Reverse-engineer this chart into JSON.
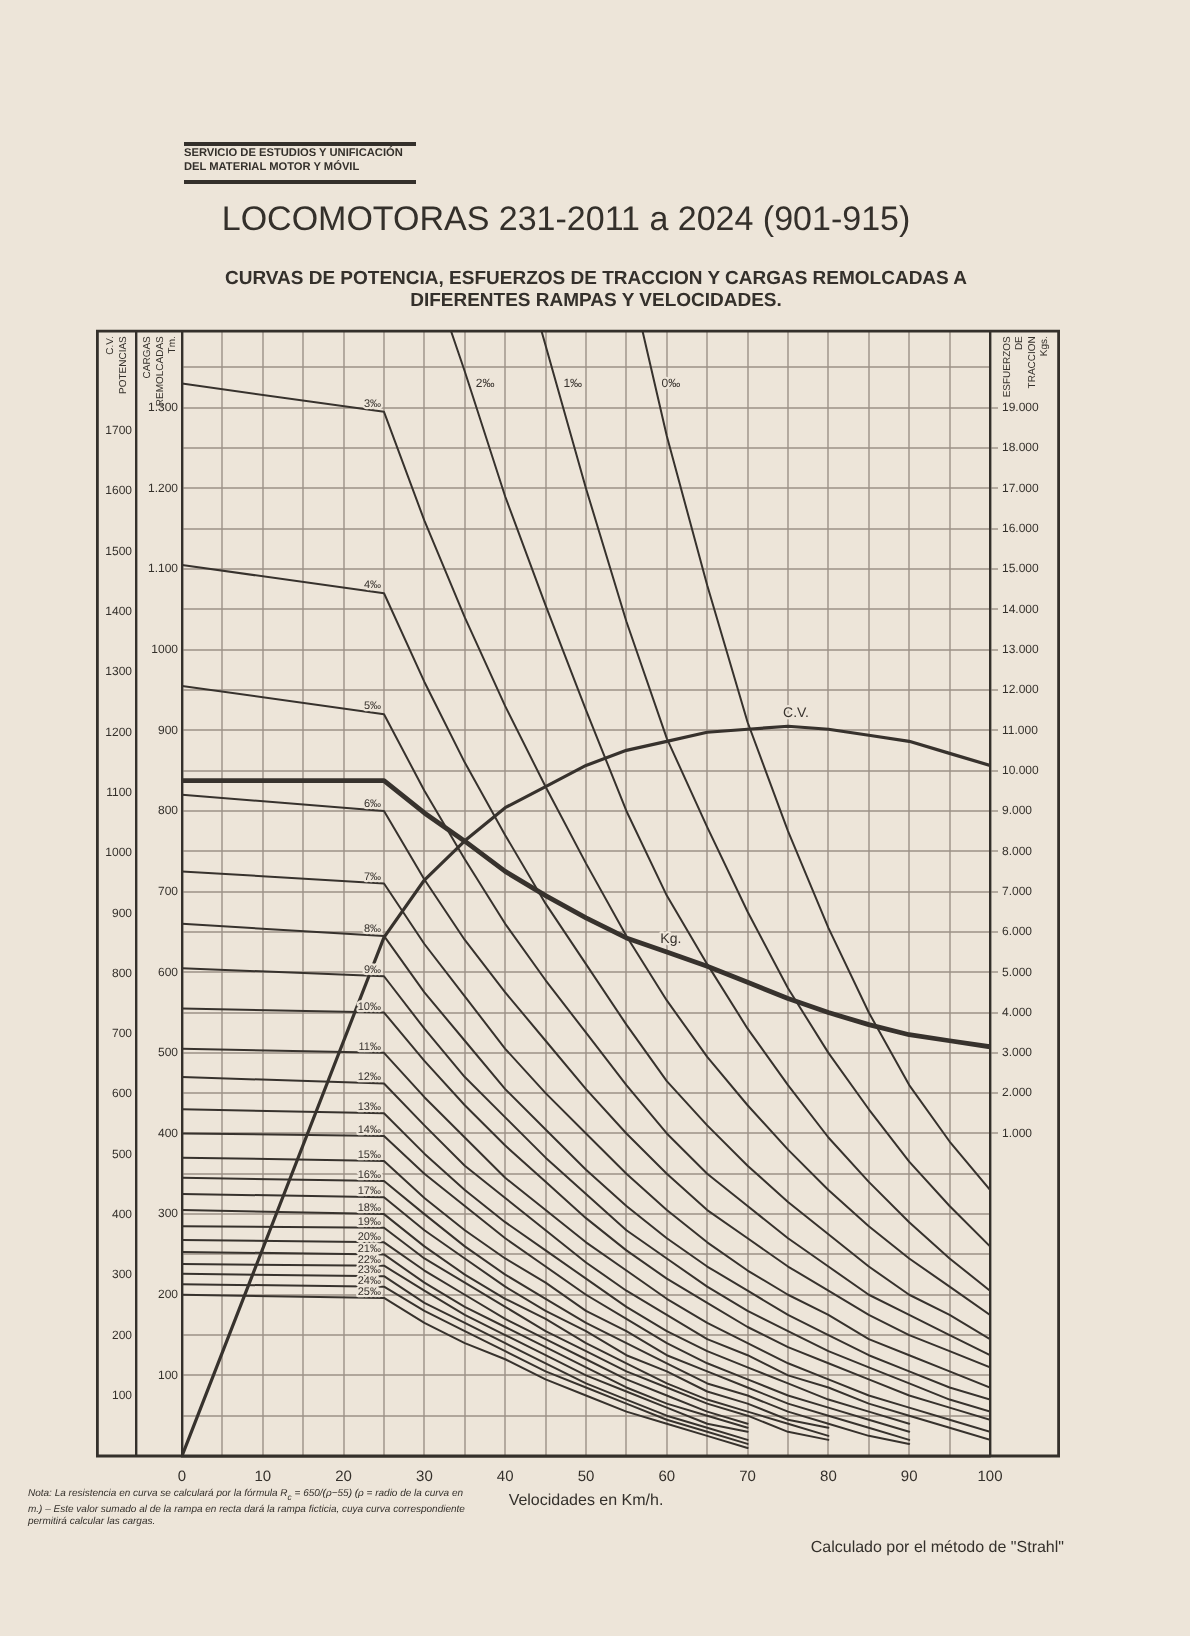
{
  "chart_data": {
    "type": "line",
    "title": "LOCOMOTORAS 231-2011 a 2024 (901-915)",
    "subtitle": "CURVAS DE POTENCIA, ESFUERZOS DE TRACCION Y CARGAS REMOLCADAS A DIFERENTES RAMPAS Y VELOCIDADES.",
    "xlabel": "Velocidades en Km/h.",
    "ylabel": "CARGAS REMOLCADAS Tm.",
    "y2label": "ESFUERZOS DE TRACCION Kgs.",
    "y3label": "C.V. POTENCIAS",
    "xlim": [
      0,
      100
    ],
    "xticks": [
      0,
      {
        "value": 5,
        "label": null
      },
      10,
      {
        "value": 15,
        "label": null
      },
      20,
      {
        "value": 25,
        "label": null
      },
      30,
      {
        "value": 35,
        "label": null
      },
      40,
      {
        "value": 45,
        "label": null
      },
      50,
      {
        "value": 55,
        "label": null
      },
      60,
      {
        "value": 65,
        "label": null
      },
      70,
      {
        "value": 75,
        "label": null
      },
      80,
      {
        "value": 85,
        "label": null
      },
      90,
      {
        "value": 95,
        "label": null
      },
      100
    ],
    "ylim": [
      0,
      1395
    ],
    "yticks": [
      {
        "value": 50,
        "label": null
      },
      100,
      {
        "value": 150,
        "label": null
      },
      200,
      {
        "value": 250,
        "label": null
      },
      300,
      {
        "value": 350,
        "label": null
      },
      400,
      {
        "value": 450,
        "label": null
      },
      500,
      {
        "value": 550,
        "label": null
      },
      600,
      {
        "value": 650,
        "label": null
      },
      700,
      {
        "value": 750,
        "label": null
      },
      800,
      {
        "value": 850,
        "label": null
      },
      900,
      {
        "value": 950,
        "label": null
      },
      1000,
      {
        "value": 1050,
        "label": null
      },
      {
        "value": 1100,
        "label": "1.100"
      },
      {
        "value": 1150,
        "label": null
      },
      {
        "value": 1200,
        "label": "1.200"
      },
      {
        "value": 1250,
        "label": null
      },
      {
        "value": 1300,
        "label": "1.300"
      },
      {
        "value": 1350,
        "label": null
      }
    ],
    "y2lim": [
      -7000,
      20900
    ],
    "y2ticks": [
      {
        "value": 1000,
        "label": "1.000"
      },
      {
        "value": 2000,
        "label": "2.000"
      },
      {
        "value": 3000,
        "label": "3.000"
      },
      {
        "value": 4000,
        "label": "4.000"
      },
      {
        "value": 5000,
        "label": "5.000"
      },
      {
        "value": 6000,
        "label": "6.000"
      },
      {
        "value": 7000,
        "label": "7.000"
      },
      {
        "value": 8000,
        "label": "8.000"
      },
      {
        "value": 9000,
        "label": "9.000"
      },
      {
        "value": 10000,
        "label": "10.000"
      },
      {
        "value": 11000,
        "label": "11.000"
      },
      {
        "value": 12000,
        "label": "12.000"
      },
      {
        "value": 13000,
        "label": "13.000"
      },
      {
        "value": 14000,
        "label": "14.000"
      },
      {
        "value": 15000,
        "label": "15.000"
      },
      {
        "value": 16000,
        "label": "16.000"
      },
      {
        "value": 17000,
        "label": "17.000"
      },
      {
        "value": 18000,
        "label": "18.000"
      },
      {
        "value": 19000,
        "label": "19.000"
      }
    ],
    "y3lim": [
      0,
      1865
    ],
    "y3ticks": [
      100,
      200,
      300,
      400,
      500,
      600,
      700,
      800,
      900,
      1000,
      1100,
      1200,
      1300,
      1400,
      1500,
      1600,
      1700
    ],
    "grid": true,
    "series": [
      {
        "name": "0‰",
        "color": "#37322d",
        "x": [
          57,
          60,
          65,
          70,
          75,
          80,
          85,
          90,
          95,
          100
        ],
        "values": [
          1395,
          1265,
          1080,
          910,
          775,
          655,
          550,
          460,
          390,
          330
        ]
      },
      {
        "name": "1‰",
        "color": "#37322d",
        "x": [
          44.5,
          50,
          55,
          60,
          65,
          70,
          75,
          80,
          85,
          90,
          95,
          100
        ],
        "values": [
          1395,
          1200,
          1035,
          890,
          780,
          675,
          580,
          500,
          430,
          365,
          310,
          260
        ]
      },
      {
        "name": "2‰",
        "color": "#37322d",
        "x": [
          33.3,
          35,
          40,
          45,
          50,
          55,
          60,
          65,
          70,
          75,
          80,
          85,
          90,
          95,
          100
        ],
        "values": [
          1395,
          1345,
          1190,
          1055,
          925,
          800,
          695,
          610,
          530,
          460,
          395,
          340,
          290,
          245,
          205
        ]
      },
      {
        "name": "3‰",
        "color": "#37322d",
        "x": [
          0,
          25,
          30,
          35,
          40,
          45,
          50,
          55,
          60,
          65,
          70,
          75,
          80,
          85,
          90,
          95,
          100
        ],
        "values": [
          1330,
          1295,
          1160,
          1040,
          930,
          830,
          735,
          645,
          565,
          495,
          435,
          380,
          330,
          285,
          245,
          210,
          175
        ]
      },
      {
        "name": "4‰",
        "color": "#37322d",
        "x": [
          0,
          25,
          30,
          35,
          40,
          45,
          50,
          55,
          60,
          65,
          70,
          75,
          80,
          85,
          90,
          95,
          100
        ],
        "values": [
          1105,
          1070,
          960,
          860,
          770,
          685,
          610,
          535,
          465,
          410,
          360,
          315,
          275,
          235,
          200,
          175,
          145
        ]
      },
      {
        "name": "5‰",
        "color": "#37322d",
        "x": [
          0,
          25,
          30,
          35,
          40,
          45,
          50,
          55,
          60,
          65,
          70,
          75,
          80,
          85,
          90,
          95,
          100
        ],
        "values": [
          955,
          920,
          825,
          740,
          660,
          590,
          525,
          460,
          400,
          350,
          310,
          270,
          235,
          200,
          175,
          150,
          125
        ]
      },
      {
        "name": "6‰",
        "color": "#37322d",
        "x": [
          0,
          25,
          30,
          35,
          40,
          45,
          50,
          55,
          60,
          65,
          70,
          75,
          80,
          85,
          90,
          95,
          100
        ],
        "values": [
          820,
          800,
          715,
          640,
          575,
          515,
          455,
          400,
          350,
          305,
          270,
          235,
          205,
          175,
          150,
          130,
          110
        ]
      },
      {
        "name": "7‰",
        "color": "#37322d",
        "x": [
          0,
          25,
          30,
          35,
          40,
          45,
          50,
          55,
          60,
          65,
          70,
          75,
          80,
          85,
          90,
          95,
          100
        ],
        "values": [
          725,
          710,
          635,
          570,
          505,
          450,
          400,
          350,
          305,
          265,
          230,
          200,
          175,
          145,
          125,
          105,
          85
        ]
      },
      {
        "name": "8‰",
        "color": "#37322d",
        "x": [
          0,
          25,
          30,
          35,
          40,
          45,
          50,
          55,
          60,
          65,
          70,
          75,
          80,
          85,
          90,
          95,
          100
        ],
        "values": [
          660,
          645,
          575,
          515,
          455,
          405,
          355,
          310,
          270,
          235,
          205,
          175,
          150,
          125,
          105,
          85,
          70
        ]
      },
      {
        "name": "9‰",
        "color": "#37322d",
        "x": [
          0,
          25,
          30,
          35,
          40,
          45,
          50,
          55,
          60,
          65,
          70,
          75,
          80,
          85,
          90,
          95,
          100
        ],
        "values": [
          605,
          595,
          530,
          470,
          420,
          370,
          325,
          280,
          245,
          210,
          180,
          155,
          130,
          110,
          90,
          70,
          55
        ]
      },
      {
        "name": "10‰",
        "color": "#37322d",
        "x": [
          0,
          25,
          30,
          35,
          40,
          45,
          50,
          55,
          60,
          65,
          70,
          75,
          80,
          85,
          90,
          95,
          100
        ],
        "values": [
          555,
          550,
          490,
          435,
          385,
          340,
          295,
          255,
          220,
          190,
          160,
          135,
          115,
          95,
          75,
          60,
          45
        ]
      },
      {
        "name": "11‰",
        "color": "#37322d",
        "x": [
          0,
          25,
          30,
          35,
          40,
          45,
          50,
          55,
          60,
          65,
          70,
          75,
          80,
          85,
          90,
          95,
          100
        ],
        "values": [
          505,
          500,
          445,
          395,
          345,
          305,
          265,
          230,
          195,
          165,
          140,
          115,
          95,
          75,
          60,
          45,
          30
        ]
      },
      {
        "name": "12‰",
        "color": "#37322d",
        "x": [
          0,
          25,
          30,
          35,
          40,
          45,
          50,
          55,
          60,
          65,
          70,
          75,
          80,
          85,
          90,
          95,
          100
        ],
        "values": [
          470,
          462,
          410,
          360,
          320,
          280,
          240,
          205,
          175,
          145,
          125,
          100,
          85,
          65,
          50,
          35,
          20
        ]
      },
      {
        "name": "13‰",
        "color": "#37322d",
        "x": [
          0,
          25,
          30,
          35,
          40,
          45,
          50,
          55,
          60,
          65,
          70,
          75,
          80,
          85,
          90
        ],
        "values": [
          430,
          425,
          375,
          330,
          290,
          255,
          220,
          185,
          155,
          130,
          110,
          90,
          70,
          55,
          40
        ]
      },
      {
        "name": "14‰",
        "color": "#37322d",
        "x": [
          0,
          25,
          30,
          35,
          40,
          45,
          50,
          55,
          60,
          65,
          70,
          75,
          80,
          85,
          90
        ],
        "values": [
          400,
          397,
          350,
          310,
          270,
          235,
          200,
          170,
          140,
          115,
          95,
          75,
          60,
          45,
          30
        ]
      },
      {
        "name": "15‰",
        "color": "#37322d",
        "x": [
          0,
          25,
          30,
          35,
          40,
          45,
          50,
          55,
          60,
          65,
          70,
          75,
          80,
          85,
          90
        ],
        "values": [
          370,
          366,
          320,
          280,
          245,
          215,
          180,
          155,
          125,
          105,
          85,
          65,
          50,
          35,
          20
        ]
      },
      {
        "name": "16‰",
        "color": "#37322d",
        "x": [
          0,
          25,
          30,
          35,
          40,
          45,
          50,
          55,
          60,
          65,
          70,
          75,
          80,
          85,
          90
        ],
        "values": [
          345,
          341,
          300,
          260,
          225,
          195,
          165,
          140,
          115,
          90,
          75,
          55,
          40,
          25,
          15
        ]
      },
      {
        "name": "17‰",
        "color": "#37322d",
        "x": [
          0,
          25,
          30,
          35,
          40,
          45,
          50,
          55,
          60,
          65,
          70,
          75,
          80
        ],
        "values": [
          325,
          321,
          280,
          245,
          210,
          180,
          155,
          125,
          105,
          80,
          65,
          45,
          35
        ]
      },
      {
        "name": "18‰",
        "color": "#37322d",
        "x": [
          0,
          25,
          30,
          35,
          40,
          45,
          50,
          55,
          60,
          65,
          70,
          75,
          80
        ],
        "values": [
          305,
          300,
          260,
          225,
          195,
          170,
          140,
          115,
          90,
          70,
          55,
          40,
          25
        ]
      },
      {
        "name": "19‰",
        "color": "#37322d",
        "x": [
          0,
          25,
          30,
          35,
          40,
          45,
          50,
          55,
          60,
          65,
          70,
          75,
          80
        ],
        "values": [
          285,
          283,
          245,
          215,
          185,
          155,
          130,
          105,
          85,
          65,
          50,
          30,
          20
        ]
      },
      {
        "name": "20‰",
        "color": "#37322d",
        "x": [
          0,
          25,
          30,
          35,
          40,
          45,
          50,
          55,
          60,
          65,
          70
        ],
        "values": [
          268,
          265,
          230,
          200,
          170,
          145,
          120,
          95,
          75,
          55,
          40
        ]
      },
      {
        "name": "21‰",
        "color": "#37322d",
        "x": [
          0,
          25,
          30,
          35,
          40,
          45,
          50,
          55,
          60,
          65,
          70
        ],
        "values": [
          253,
          250,
          215,
          185,
          160,
          135,
          110,
          85,
          65,
          50,
          35
        ]
      },
      {
        "name": "22‰",
        "color": "#37322d",
        "x": [
          0,
          25,
          30,
          35,
          40,
          45,
          50,
          55,
          60,
          65,
          70
        ],
        "values": [
          238,
          236,
          205,
          175,
          150,
          125,
          100,
          80,
          60,
          40,
          30
        ]
      },
      {
        "name": "23‰",
        "color": "#37322d",
        "x": [
          0,
          25,
          30,
          35,
          40,
          45,
          50,
          55,
          60,
          65,
          70
        ],
        "values": [
          226,
          223,
          190,
          165,
          140,
          115,
          90,
          70,
          50,
          35,
          20
        ]
      },
      {
        "name": "24‰",
        "color": "#37322d",
        "x": [
          0,
          25,
          30,
          35,
          40,
          45,
          50,
          55,
          60,
          65,
          70
        ],
        "values": [
          213,
          210,
          180,
          155,
          130,
          105,
          85,
          65,
          45,
          30,
          15
        ]
      },
      {
        "name": "25‰",
        "color": "#37322d",
        "x": [
          0,
          25,
          30,
          35,
          40,
          45,
          50,
          55,
          60,
          65,
          70
        ],
        "values": [
          200,
          196,
          165,
          140,
          120,
          95,
          75,
          55,
          40,
          25,
          10
        ]
      },
      {
        "name": "C.V.",
        "color": "#37322d",
        "axis": "y3",
        "x": [
          0,
          25,
          30,
          35,
          40,
          45,
          50,
          55,
          60,
          65,
          70,
          75,
          80,
          85,
          90,
          95,
          100
        ],
        "values": [
          0,
          860,
          955,
          1020,
          1075,
          1110,
          1145,
          1170,
          1185,
          1200,
          1205,
          1210,
          1205,
          1195,
          1185,
          1165,
          1145
        ]
      },
      {
        "name": "Kg.",
        "color": "#37322d",
        "axis": "y2",
        "x": [
          0,
          25,
          30,
          35,
          40,
          45,
          50,
          55,
          60,
          65,
          70,
          75,
          80,
          85,
          90,
          95,
          100
        ],
        "values": [
          9750,
          9750,
          8950,
          8250,
          7500,
          6900,
          6350,
          5850,
          5500,
          5150,
          4750,
          4350,
          4000,
          3700,
          3450,
          3300,
          3150
        ]
      }
    ],
    "annotations": [
      "SERVICIO DE ESTUDIOS Y UNIFICACIÓN DEL MATERIAL MOTOR Y MÓVIL",
      "Nota: La resistencia en curva se calculará por la fórmula R$_{c}$ = 650/(ρ−55) (ρ = radio de la curva en m.) – Este valor sumado al de la rampa en recta dará la rampa ficticia, cuya curva correspondiente permitirá calcular las cargas.",
      "Calculado por el método de \"Strahl\""
    ]
  }
}
